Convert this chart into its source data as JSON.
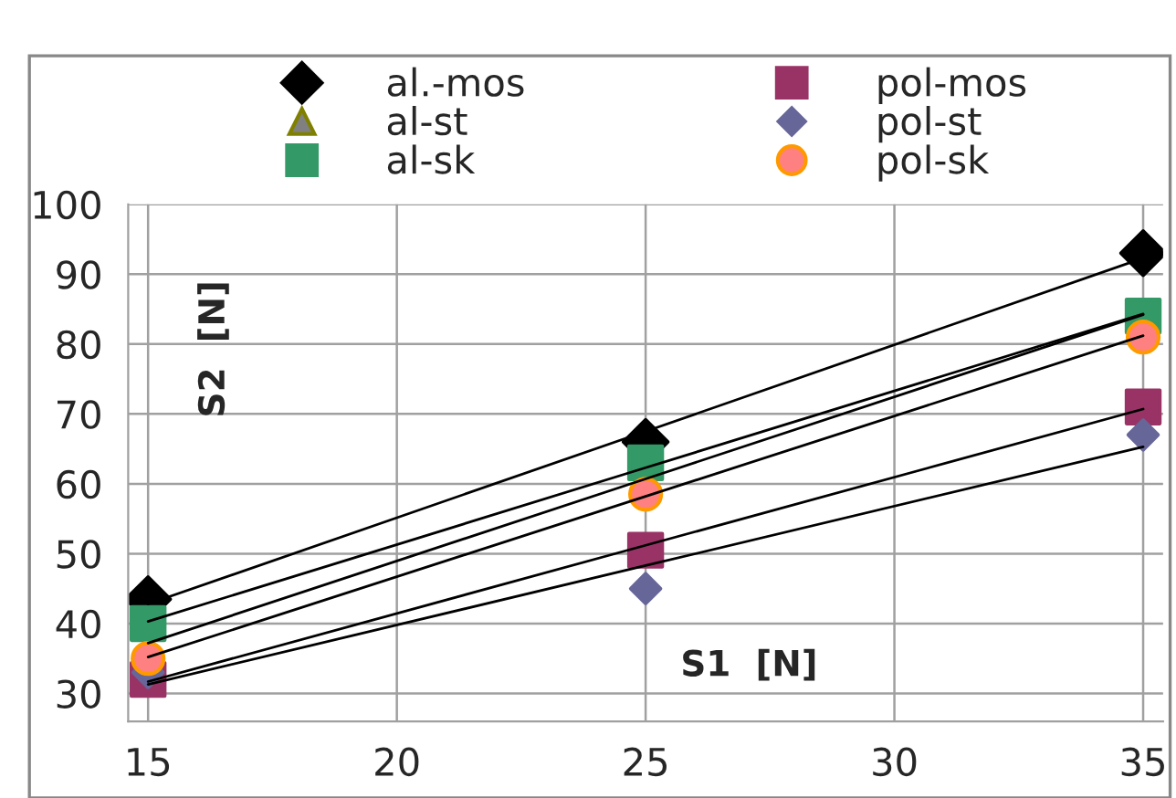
{
  "chart_data": {
    "type": "scatter",
    "xlabel": "S1  [N]",
    "ylabel": "S2  [N]",
    "x": [
      15,
      25,
      35
    ],
    "series": [
      {
        "name": "al.-mos",
        "color": "#000000",
        "marker": "diamond",
        "values": [
          43.5,
          66,
          93
        ]
      },
      {
        "name": "al-st",
        "color": "#808080",
        "marker": "triangle",
        "values": [
          null,
          null,
          null
        ]
      },
      {
        "name": "al-sk",
        "color": "#339966",
        "marker": "square",
        "values": [
          40,
          63,
          84
        ]
      },
      {
        "name": "pol-mos",
        "color": "#993366",
        "marker": "square",
        "values": [
          32,
          50.5,
          71
        ]
      },
      {
        "name": "pol-st",
        "color": "#666699",
        "marker": "diamond",
        "values": [
          33,
          45,
          67
        ]
      },
      {
        "name": "pol-sk",
        "color": "#ff8080",
        "marker": "circle",
        "values": [
          35,
          58.5,
          81
        ]
      },
      {
        "type": "line",
        "color": "#000000",
        "values": [
          42.8,
          67.5,
          92.3
        ]
      },
      {
        "type": "line",
        "color": "#000000",
        "values": [
          37.2,
          60.7,
          84.2
        ]
      },
      {
        "type": "line",
        "color": "#000000",
        "values": [
          40.3,
          62.3,
          84.3
        ]
      },
      {
        "type": "line",
        "color": "#000000",
        "values": [
          31.7,
          51.2,
          70.7
        ]
      },
      {
        "type": "line",
        "color": "#000000",
        "values": [
          31.3,
          48.3,
          65.3
        ]
      },
      {
        "type": "line",
        "color": "#000000",
        "values": [
          35.2,
          58.2,
          81.2
        ]
      }
    ],
    "xlim": [
      14.6,
      35.4
    ],
    "xticks": [
      15,
      20,
      25,
      30,
      35
    ],
    "ylim": [
      26,
      100
    ],
    "yticks": [
      30,
      40,
      50,
      60,
      70,
      80,
      90,
      100
    ],
    "grid": true,
    "legend": "top"
  }
}
